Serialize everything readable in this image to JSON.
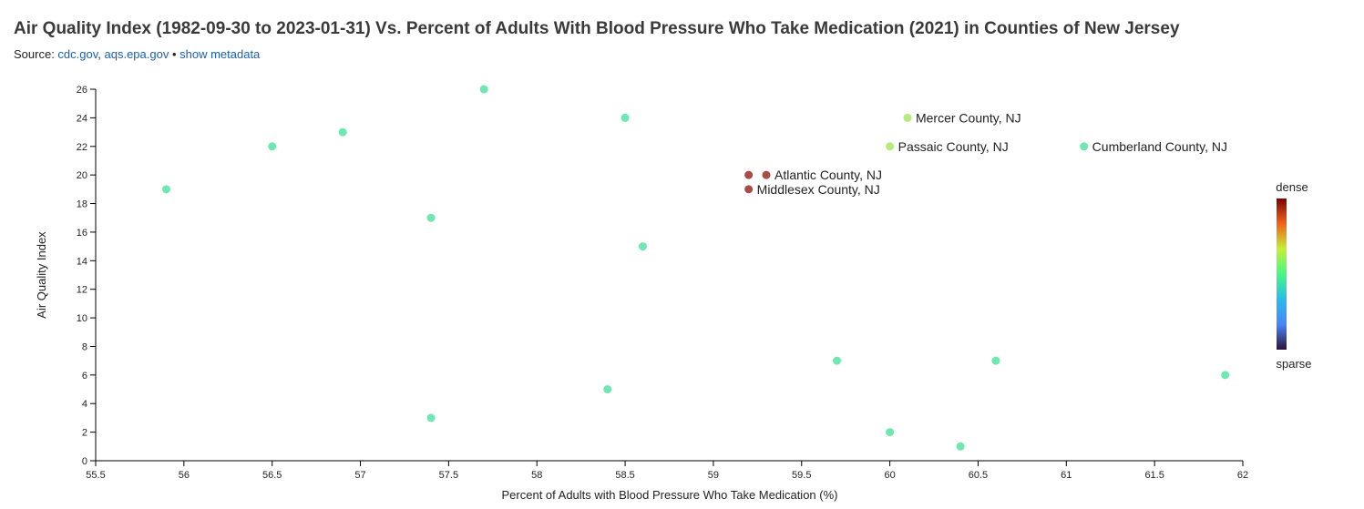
{
  "header": {
    "title": "Air Quality Index (1982-09-30 to 2023-01-31) Vs. Percent of Adults With Blood Pressure Who Take Medication (2021) in Counties of New Jersey",
    "source_prefix": "Source: ",
    "source_link_1": "cdc.gov",
    "source_sep": ", ",
    "source_link_2": "aqs.epa.gov",
    "source_bullet": " • ",
    "metadata_link": "show metadata"
  },
  "legend": {
    "dense_label": "dense",
    "sparse_label": "sparse",
    "colors": [
      "#7a0403",
      "#f36315",
      "#c3f034",
      "#46f884",
      "#28bceb",
      "#4686fb",
      "#30123b"
    ]
  },
  "colors": {
    "default_point": "#6ee8b0",
    "accent_light": "#b5ec7a",
    "accent_dense": "#a84c48",
    "axis": "#000000",
    "link": "#1a5fb4"
  },
  "chart_data": {
    "type": "scatter",
    "title": "Air Quality Index (1982-09-30 to 2023-01-31) Vs. Percent of Adults With Blood Pressure Who Take Medication (2021) in Counties of New Jersey",
    "xlabel": "Percent of Adults with Blood Pressure Who Take Medication (%)",
    "ylabel": "Air Quality Index",
    "xlim": [
      55.5,
      62
    ],
    "ylim": [
      0,
      26
    ],
    "xticks": [
      55.5,
      56,
      56.5,
      57,
      57.5,
      58,
      58.5,
      59,
      59.5,
      60,
      60.5,
      61,
      61.5,
      62
    ],
    "yticks": [
      0,
      2,
      4,
      6,
      8,
      10,
      12,
      14,
      16,
      18,
      20,
      22,
      24,
      26
    ],
    "grid": false,
    "legend_position": "right",
    "points": [
      {
        "x": 55.9,
        "y": 19,
        "color": "#6ee8b0"
      },
      {
        "x": 56.5,
        "y": 22,
        "color": "#6ee8b0"
      },
      {
        "x": 56.9,
        "y": 23,
        "color": "#6ee8b0"
      },
      {
        "x": 57.4,
        "y": 17,
        "color": "#6ee8b0"
      },
      {
        "x": 57.4,
        "y": 3,
        "color": "#6ee8b0"
      },
      {
        "x": 57.7,
        "y": 26,
        "color": "#6ee8b0"
      },
      {
        "x": 58.4,
        "y": 5,
        "color": "#6ee8b0"
      },
      {
        "x": 58.5,
        "y": 24,
        "color": "#6ee8b0"
      },
      {
        "x": 58.6,
        "y": 15,
        "color": "#6ee8b0"
      },
      {
        "x": 59.2,
        "y": 20,
        "color": "#a84c48"
      },
      {
        "x": 59.3,
        "y": 20,
        "color": "#a84c48",
        "label": "Atlantic County, NJ"
      },
      {
        "x": 59.2,
        "y": 19,
        "color": "#a84c48",
        "label": "Middlesex County, NJ"
      },
      {
        "x": 59.7,
        "y": 7,
        "color": "#6ee8b0"
      },
      {
        "x": 60.0,
        "y": 22,
        "color": "#b5ec7a",
        "label": "Passaic County, NJ"
      },
      {
        "x": 60.0,
        "y": 2,
        "color": "#6ee8b0"
      },
      {
        "x": 60.1,
        "y": 24,
        "color": "#b5ec7a",
        "label": "Mercer County, NJ"
      },
      {
        "x": 60.4,
        "y": 1,
        "color": "#6ee8b0"
      },
      {
        "x": 60.6,
        "y": 7,
        "color": "#6ee8b0"
      },
      {
        "x": 61.1,
        "y": 22,
        "color": "#6ee8b0",
        "label": "Cumberland County, NJ"
      },
      {
        "x": 61.9,
        "y": 6,
        "color": "#6ee8b0"
      }
    ]
  }
}
